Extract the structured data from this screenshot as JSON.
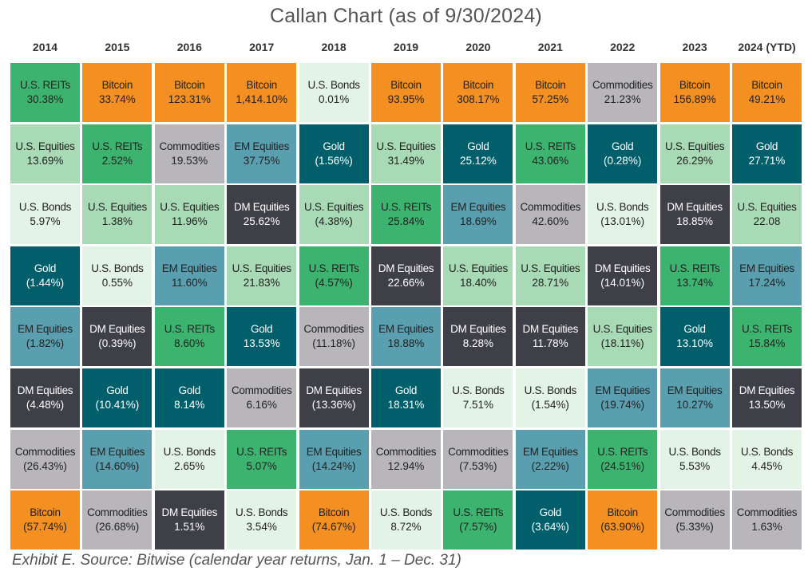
{
  "title": "Callan Chart (as of 9/30/2024)",
  "footer": "Exhibit E. Source: Bitwise (calendar year returns, Jan. 1 – Dec. 31)",
  "colors": {
    "Bitcoin": "#F39021",
    "U.S. REITs": "#3DB370",
    "U.S. Equities": "#A8DAB5",
    "U.S. Bonds": "#E3F3E6",
    "Gold": "#005F6B",
    "EM Equities": "#5A9FAF",
    "DM Equities": "#3E3F47",
    "Commodities": "#B8B6BB"
  },
  "text_colors": {
    "Bitcoin": "#222222",
    "U.S. REITs": "#222222",
    "U.S. Equities": "#222222",
    "U.S. Bonds": "#222222",
    "Gold": "#ffffff",
    "EM Equities": "#222222",
    "DM Equities": "#ffffff",
    "Commodities": "#222222"
  },
  "chart_data": {
    "type": "table",
    "title": "Callan Chart (as of 9/30/2024)",
    "years": [
      "2014",
      "2015",
      "2016",
      "2017",
      "2018",
      "2019",
      "2020",
      "2021",
      "2022",
      "2023",
      "2024 (YTD)"
    ],
    "columns": [
      [
        {
          "asset": "U.S. REITs",
          "ret": "30.38%"
        },
        {
          "asset": "U.S. Equities",
          "ret": "13.69%"
        },
        {
          "asset": "U.S. Bonds",
          "ret": "5.97%"
        },
        {
          "asset": "Gold",
          "ret": "(1.44%)"
        },
        {
          "asset": "EM Equities",
          "ret": "(1.82%)"
        },
        {
          "asset": "DM Equities",
          "ret": "(4.48%)"
        },
        {
          "asset": "Commodities",
          "ret": "(26.43%)"
        },
        {
          "asset": "Bitcoin",
          "ret": "(57.74%)"
        }
      ],
      [
        {
          "asset": "Bitcoin",
          "ret": "33.74%"
        },
        {
          "asset": "U.S. REITs",
          "ret": "2.52%"
        },
        {
          "asset": "U.S. Equities",
          "ret": "1.38%"
        },
        {
          "asset": "U.S. Bonds",
          "ret": "0.55%"
        },
        {
          "asset": "DM Equities",
          "ret": "(0.39%)"
        },
        {
          "asset": "Gold",
          "ret": "(10.41%)"
        },
        {
          "asset": "EM Equities",
          "ret": "(14.60%)"
        },
        {
          "asset": "Commodities",
          "ret": "(26.68%)"
        }
      ],
      [
        {
          "asset": "Bitcoin",
          "ret": "123.31%"
        },
        {
          "asset": "Commodities",
          "ret": "19.53%"
        },
        {
          "asset": "U.S. Equities",
          "ret": "11.96%"
        },
        {
          "asset": "EM Equities",
          "ret": "11.60%"
        },
        {
          "asset": "U.S. REITs",
          "ret": "8.60%"
        },
        {
          "asset": "Gold",
          "ret": "8.14%"
        },
        {
          "asset": "U.S. Bonds",
          "ret": "2.65%"
        },
        {
          "asset": "DM Equities",
          "ret": "1.51%"
        }
      ],
      [
        {
          "asset": "Bitcoin",
          "ret": "1,414.10%"
        },
        {
          "asset": "EM Equities",
          "ret": "37.75%"
        },
        {
          "asset": "DM Equities",
          "ret": "25.62%"
        },
        {
          "asset": "U.S. Equities",
          "ret": "21.83%"
        },
        {
          "asset": "Gold",
          "ret": "13.53%"
        },
        {
          "asset": "Commodities",
          "ret": "6.16%"
        },
        {
          "asset": "U.S. REITs",
          "ret": "5.07%"
        },
        {
          "asset": "U.S. Bonds",
          "ret": "3.54%"
        }
      ],
      [
        {
          "asset": "U.S. Bonds",
          "ret": "0.01%"
        },
        {
          "asset": "Gold",
          "ret": "(1.56%)"
        },
        {
          "asset": "U.S. Equities",
          "ret": "(4.38%)"
        },
        {
          "asset": "U.S. REITs",
          "ret": "(4.57%)"
        },
        {
          "asset": "Commodities",
          "ret": "(11.18%)"
        },
        {
          "asset": "DM Equities",
          "ret": "(13.36%)"
        },
        {
          "asset": "EM Equities",
          "ret": "(14.24%)"
        },
        {
          "asset": "Bitcoin",
          "ret": "(74.67%)"
        }
      ],
      [
        {
          "asset": "Bitcoin",
          "ret": "93.95%"
        },
        {
          "asset": "U.S. Equities",
          "ret": "31.49%"
        },
        {
          "asset": "U.S. REITs",
          "ret": "25.84%"
        },
        {
          "asset": "DM Equities",
          "ret": "22.66%"
        },
        {
          "asset": "EM Equities",
          "ret": "18.88%"
        },
        {
          "asset": "Gold",
          "ret": "18.31%"
        },
        {
          "asset": "Commodities",
          "ret": "12.94%"
        },
        {
          "asset": "U.S. Bonds",
          "ret": "8.72%"
        }
      ],
      [
        {
          "asset": "Bitcoin",
          "ret": "308.17%"
        },
        {
          "asset": "Gold",
          "ret": "25.12%"
        },
        {
          "asset": "EM Equities",
          "ret": "18.69%"
        },
        {
          "asset": "U.S. Equities",
          "ret": "18.40%"
        },
        {
          "asset": "DM Equities",
          "ret": "8.28%"
        },
        {
          "asset": "U.S. Bonds",
          "ret": "7.51%"
        },
        {
          "asset": "Commodities",
          "ret": "(7.53%)"
        },
        {
          "asset": "U.S. REITs",
          "ret": "(7.57%)"
        }
      ],
      [
        {
          "asset": "Bitcoin",
          "ret": "57.25%"
        },
        {
          "asset": "U.S. REITs",
          "ret": "43.06%"
        },
        {
          "asset": "Commodities",
          "ret": "42.60%"
        },
        {
          "asset": "U.S. Equities",
          "ret": "28.71%"
        },
        {
          "asset": "DM Equities",
          "ret": "11.78%"
        },
        {
          "asset": "U.S. Bonds",
          "ret": "(1.54%)"
        },
        {
          "asset": "EM Equities",
          "ret": "(2.22%)"
        },
        {
          "asset": "Gold",
          "ret": "(3.64%)"
        }
      ],
      [
        {
          "asset": "Commodities",
          "ret": "21.23%"
        },
        {
          "asset": "Gold",
          "ret": "(0.28%)"
        },
        {
          "asset": "U.S. Bonds",
          "ret": "(13.01%)"
        },
        {
          "asset": "DM Equities",
          "ret": "(14.01%)"
        },
        {
          "asset": "U.S. Equities",
          "ret": "(18.11%)"
        },
        {
          "asset": "EM Equities",
          "ret": "(19.74%)"
        },
        {
          "asset": "U.S. REITs",
          "ret": "(24.51%)"
        },
        {
          "asset": "Bitcoin",
          "ret": "(63.90%)"
        }
      ],
      [
        {
          "asset": "Bitcoin",
          "ret": "156.89%"
        },
        {
          "asset": "U.S. Equities",
          "ret": "26.29%"
        },
        {
          "asset": "DM Equities",
          "ret": "18.85%"
        },
        {
          "asset": "U.S. REITs",
          "ret": "13.74%"
        },
        {
          "asset": "Gold",
          "ret": "13.10%"
        },
        {
          "asset": "EM Equities",
          "ret": "10.27%"
        },
        {
          "asset": "U.S. Bonds",
          "ret": "5.53%"
        },
        {
          "asset": "Commodities",
          "ret": "(5.33%)"
        }
      ],
      [
        {
          "asset": "Bitcoin",
          "ret": "49.21%"
        },
        {
          "asset": "Gold",
          "ret": "27.71%"
        },
        {
          "asset": "U.S. Equities",
          "ret": "22.08"
        },
        {
          "asset": "EM Equities",
          "ret": "17.24%"
        },
        {
          "asset": "U.S. REITs",
          "ret": "15.84%"
        },
        {
          "asset": "DM Equities",
          "ret": "13.50%"
        },
        {
          "asset": "U.S. Bonds",
          "ret": "4.45%"
        },
        {
          "asset": "Commodities",
          "ret": "1.63%"
        }
      ]
    ]
  }
}
